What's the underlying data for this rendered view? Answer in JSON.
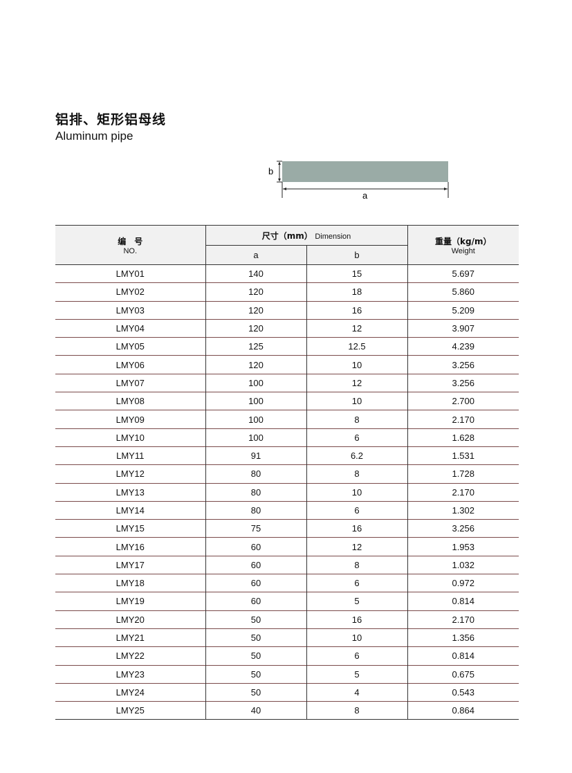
{
  "heading": {
    "title_cn": "铝排、矩形铝母线",
    "title_en": "Aluminum pipe"
  },
  "diagram": {
    "label_a": "a",
    "label_b": "b",
    "bar_color": "#9aaba6"
  },
  "table": {
    "headers": {
      "no_cn": "编　号",
      "no_en": "NO.",
      "dimension_cn": "尺寸（mm）",
      "dimension_en": "Dimension",
      "a": "a",
      "b": "b",
      "weight_cn": "重量（kg/m）",
      "weight_en": "Weight"
    },
    "rows": [
      {
        "no": "LMY01",
        "a": "140",
        "b": "15",
        "weight": "5.697"
      },
      {
        "no": "LMY02",
        "a": "120",
        "b": "18",
        "weight": "5.860"
      },
      {
        "no": "LMY03",
        "a": "120",
        "b": "16",
        "weight": "5.209"
      },
      {
        "no": "LMY04",
        "a": "120",
        "b": "12",
        "weight": "3.907"
      },
      {
        "no": "LMY05",
        "a": "125",
        "b": "12.5",
        "weight": "4.239"
      },
      {
        "no": "LMY06",
        "a": "120",
        "b": "10",
        "weight": "3.256"
      },
      {
        "no": "LMY07",
        "a": "100",
        "b": "12",
        "weight": "3.256"
      },
      {
        "no": "LMY08",
        "a": "100",
        "b": "10",
        "weight": "2.700"
      },
      {
        "no": "LMY09",
        "a": "100",
        "b": "8",
        "weight": "2.170"
      },
      {
        "no": "LMY10",
        "a": "100",
        "b": "6",
        "weight": "1.628"
      },
      {
        "no": "LMY11",
        "a": "91",
        "b": "6.2",
        "weight": "1.531"
      },
      {
        "no": "LMY12",
        "a": "80",
        "b": "8",
        "weight": "1.728"
      },
      {
        "no": "LMY13",
        "a": "80",
        "b": "10",
        "weight": "2.170"
      },
      {
        "no": "LMY14",
        "a": "80",
        "b": "6",
        "weight": "1.302"
      },
      {
        "no": "LMY15",
        "a": "75",
        "b": "16",
        "weight": "3.256"
      },
      {
        "no": "LMY16",
        "a": "60",
        "b": "12",
        "weight": "1.953"
      },
      {
        "no": "LMY17",
        "a": "60",
        "b": "8",
        "weight": "1.032"
      },
      {
        "no": "LMY18",
        "a": "60",
        "b": "6",
        "weight": "0.972"
      },
      {
        "no": "LMY19",
        "a": "60",
        "b": "5",
        "weight": "0.814"
      },
      {
        "no": "LMY20",
        "a": "50",
        "b": "16",
        "weight": "2.170"
      },
      {
        "no": "LMY21",
        "a": "50",
        "b": "10",
        "weight": "1.356"
      },
      {
        "no": "LMY22",
        "a": "50",
        "b": "6",
        "weight": "0.814"
      },
      {
        "no": "LMY23",
        "a": "50",
        "b": "5",
        "weight": "0.675"
      },
      {
        "no": "LMY24",
        "a": "50",
        "b": "4",
        "weight": "0.543"
      },
      {
        "no": "LMY25",
        "a": "40",
        "b": "8",
        "weight": "0.864"
      }
    ]
  }
}
